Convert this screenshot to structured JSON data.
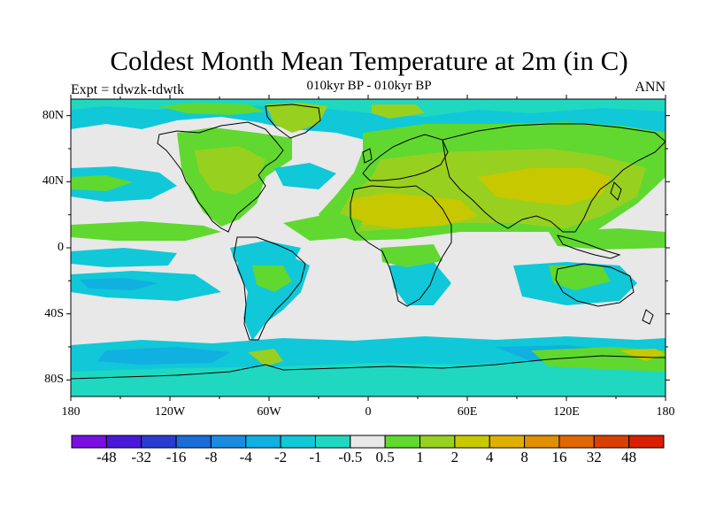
{
  "header": {
    "title": "Coldest Month Mean Temperature at 2m (in C)",
    "subtitle": "010kyr BP - 010kyr BP",
    "left_label": "Expt = tdwzk-tdwtk",
    "right_label": "ANN"
  },
  "axes": {
    "lat_labels": [
      "80N",
      "40N",
      "0",
      "40S",
      "80S"
    ],
    "lat_values": [
      80,
      40,
      0,
      -40,
      -80
    ],
    "lon_labels": [
      "180",
      "120W",
      "60W",
      "0",
      "60E",
      "120E",
      "180"
    ],
    "lon_values": [
      -180,
      -120,
      -60,
      0,
      60,
      120,
      180
    ],
    "lat_range": [
      -90,
      90
    ],
    "lon_range": [
      -180,
      180
    ]
  },
  "colorbar": {
    "labels": [
      "-48",
      "-32",
      "-16",
      "-8",
      "-4",
      "-2",
      "-1",
      "-0.5",
      "0.5",
      "1",
      "2",
      "4",
      "8",
      "16",
      "32",
      "48"
    ],
    "colors": [
      "#7a10e0",
      "#4a18d8",
      "#2a3cd0",
      "#1a6cd8",
      "#1a8ce0",
      "#10b0e0",
      "#10c8d8",
      "#20d8c0",
      "#e8e8e8",
      "#60d830",
      "#98d020",
      "#c8c800",
      "#e0b000",
      "#e09000",
      "#e06800",
      "#d84000",
      "#d82000"
    ]
  },
  "colors": {
    "neutral": "#e8e8e8",
    "cyan": "#10c8d8",
    "teal": "#20d8c0",
    "green": "#60d830",
    "lime": "#98d020",
    "olive": "#c8c800",
    "light_blue": "#10b0e0",
    "blue": "#1a8ce0",
    "coast": "#000000"
  }
}
